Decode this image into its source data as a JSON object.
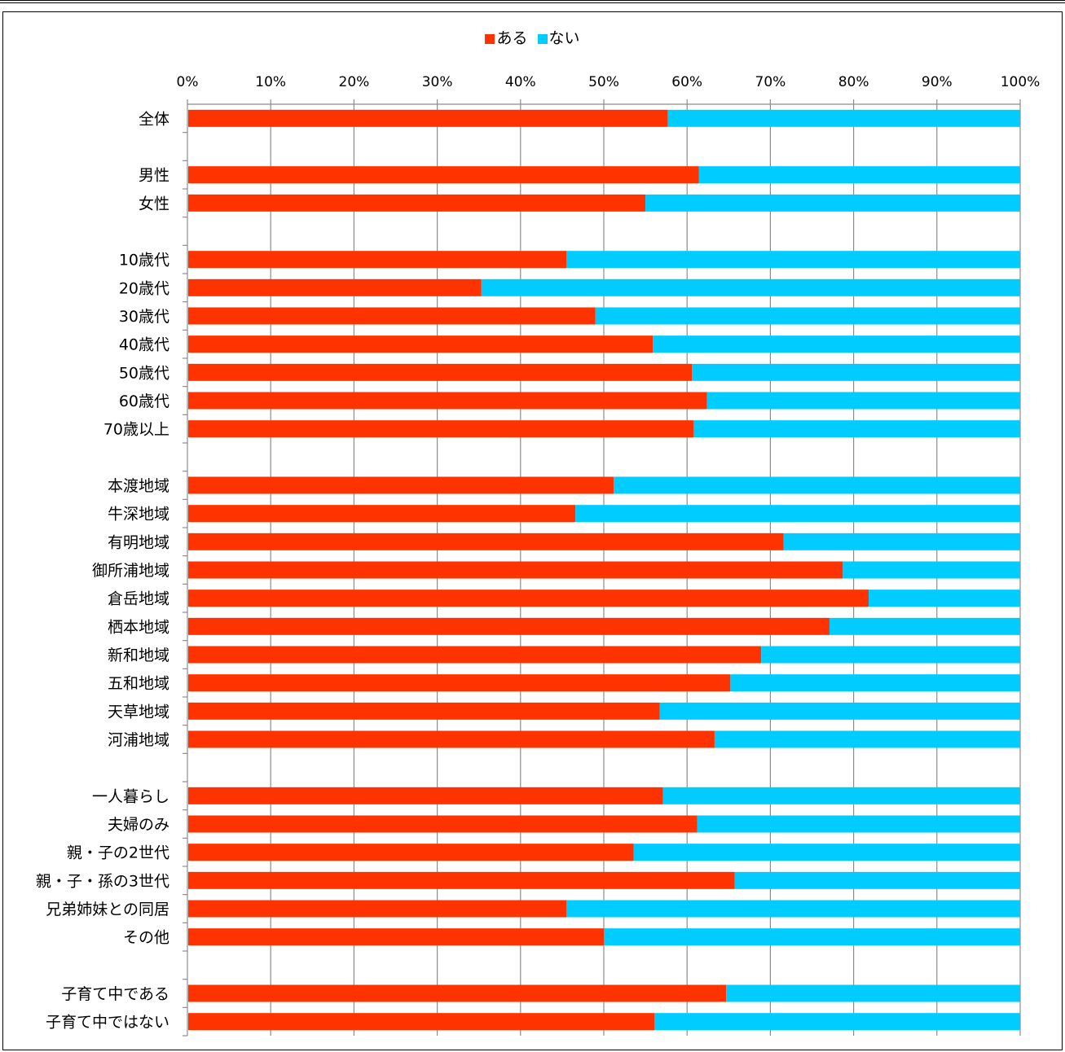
{
  "chart_data": {
    "type": "bar",
    "orientation": "horizontal",
    "stacked": "percent",
    "legend": {
      "position": "top",
      "entries": [
        "ある",
        "ない"
      ]
    },
    "colors": {
      "ある": "#ff3300",
      "ない": "#00ccff"
    },
    "xlim": [
      0,
      100
    ],
    "xticks": [
      "0%",
      "10%",
      "20%",
      "30%",
      "40%",
      "50%",
      "60%",
      "70%",
      "80%",
      "90%",
      "100%"
    ],
    "grid": true,
    "rows": [
      {
        "label": "全体",
        "value": 57.7
      },
      {
        "label": "",
        "value": null
      },
      {
        "label": "男性",
        "value": 61.4
      },
      {
        "label": "女性",
        "value": 55.0
      },
      {
        "label": "",
        "value": null
      },
      {
        "label": "10歳代",
        "value": 45.5
      },
      {
        "label": "20歳代",
        "value": 35.3
      },
      {
        "label": "30歳代",
        "value": 49.0
      },
      {
        "label": "40歳代",
        "value": 55.9
      },
      {
        "label": "50歳代",
        "value": 60.6
      },
      {
        "label": "60歳代",
        "value": 62.4
      },
      {
        "label": "70歳以上",
        "value": 60.8
      },
      {
        "label": "",
        "value": null
      },
      {
        "label": "本渡地域",
        "value": 51.2
      },
      {
        "label": "牛深地域",
        "value": 46.6
      },
      {
        "label": "有明地域",
        "value": 71.6
      },
      {
        "label": "御所浦地域",
        "value": 78.7
      },
      {
        "label": "倉岳地域",
        "value": 81.8
      },
      {
        "label": "栖本地域",
        "value": 77.1
      },
      {
        "label": "新和地域",
        "value": 68.9
      },
      {
        "label": "五和地域",
        "value": 65.2
      },
      {
        "label": "天草地域",
        "value": 56.7
      },
      {
        "label": "河浦地域",
        "value": 63.3
      },
      {
        "label": "",
        "value": null
      },
      {
        "label": "一人暮らし",
        "value": 57.1
      },
      {
        "label": "夫婦のみ",
        "value": 61.2
      },
      {
        "label": "親・子の2世代",
        "value": 53.6
      },
      {
        "label": "親・子・孫の3世代",
        "value": 65.7
      },
      {
        "label": "兄弟姉妹との同居",
        "value": 45.5
      },
      {
        "label": "その他",
        "value": 50.0
      },
      {
        "label": "",
        "value": null
      },
      {
        "label": "子育て中である",
        "value": 64.7
      },
      {
        "label": "子育て中ではない",
        "value": 56.1
      }
    ]
  }
}
